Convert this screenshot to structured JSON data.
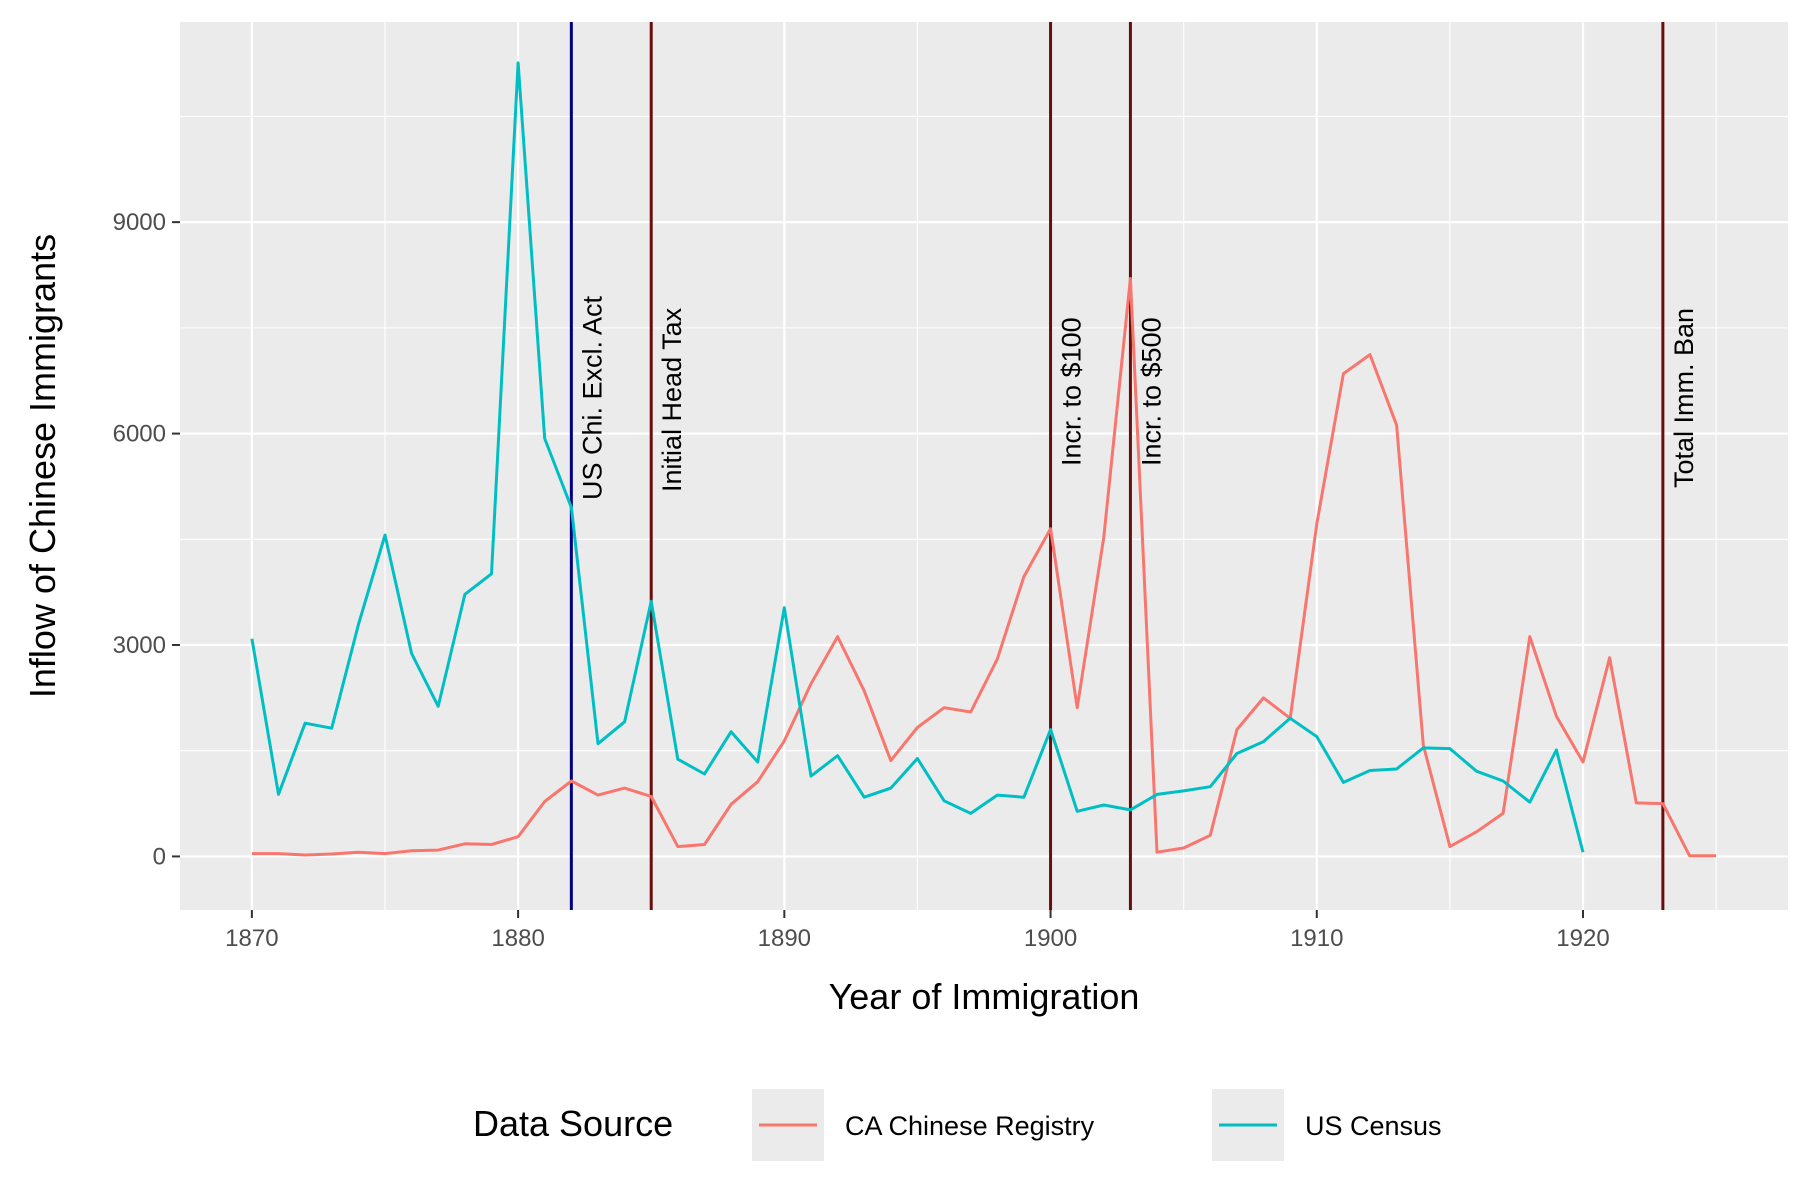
{
  "chart_data": {
    "type": "line",
    "xlabel": "Year of Immigration",
    "ylabel": "Inflow of Chinese Immigrants",
    "xlim": [
      1867.3,
      1927.7
    ],
    "ylim": [
      -760,
      11840
    ],
    "x_ticks": [
      1870,
      1880,
      1890,
      1900,
      1910,
      1920
    ],
    "y_ticks": [
      0,
      3000,
      6000,
      9000
    ],
    "x_tick_labels": [
      "1870",
      "1880",
      "1890",
      "1900",
      "1910",
      "1920"
    ],
    "y_tick_labels": [
      "0",
      "3000",
      "6000",
      "9000"
    ],
    "grid": true,
    "legend_position": "bottom",
    "legend_title": "Data Source",
    "series": [
      {
        "name": "CA Chinese Registry",
        "color": "#f8766d",
        "x": [
          1870,
          1871,
          1872,
          1873,
          1874,
          1875,
          1876,
          1877,
          1878,
          1879,
          1880,
          1881,
          1882,
          1883,
          1884,
          1885,
          1886,
          1887,
          1888,
          1889,
          1890,
          1891,
          1892,
          1893,
          1894,
          1895,
          1896,
          1897,
          1898,
          1899,
          1900,
          1901,
          1902,
          1903,
          1904,
          1905,
          1906,
          1907,
          1908,
          1909,
          1910,
          1911,
          1912,
          1913,
          1914,
          1915,
          1916,
          1917,
          1918,
          1919,
          1920,
          1921,
          1922,
          1923,
          1924,
          1925
        ],
        "y": [
          40,
          40,
          20,
          35,
          60,
          40,
          80,
          90,
          180,
          170,
          280,
          780,
          1070,
          870,
          970,
          850,
          140,
          170,
          740,
          1060,
          1640,
          2450,
          3120,
          2350,
          1360,
          1830,
          2110,
          2050,
          2800,
          3970,
          4650,
          2110,
          4530,
          8200,
          60,
          120,
          300,
          1800,
          2250,
          1960,
          4720,
          6850,
          7120,
          6120,
          1580,
          140,
          350,
          610,
          3120,
          1990,
          1340,
          2820,
          760,
          750,
          10,
          10
        ]
      },
      {
        "name": "US Census",
        "color": "#00bfc4",
        "x": [
          1870,
          1871,
          1872,
          1873,
          1874,
          1875,
          1876,
          1877,
          1878,
          1879,
          1880,
          1881,
          1882,
          1883,
          1884,
          1885,
          1886,
          1887,
          1888,
          1889,
          1890,
          1891,
          1892,
          1893,
          1894,
          1895,
          1896,
          1897,
          1898,
          1899,
          1900,
          1901,
          1902,
          1903,
          1904,
          1905,
          1906,
          1907,
          1908,
          1909,
          1910,
          1911,
          1912,
          1913,
          1914,
          1915,
          1916,
          1917,
          1918,
          1919,
          1920
        ],
        "y": [
          3090,
          880,
          1890,
          1820,
          3290,
          4560,
          2880,
          2130,
          3720,
          4010,
          11260,
          5930,
          4950,
          1600,
          1910,
          3620,
          1380,
          1170,
          1770,
          1340,
          3530,
          1140,
          1430,
          840,
          970,
          1390,
          790,
          610,
          870,
          840,
          1800,
          640,
          730,
          660,
          880,
          930,
          990,
          1460,
          1630,
          1960,
          1700,
          1050,
          1220,
          1240,
          1540,
          1530,
          1210,
          1070,
          770,
          1510,
          60
        ]
      }
    ],
    "events": [
      {
        "year": 1882,
        "label": "US Chi. Excl. Act",
        "color": "#000080"
      },
      {
        "year": 1885,
        "label": "Initial Head Tax",
        "color": "#6b0d0d"
      },
      {
        "year": 1900,
        "label": "Incr. to $100",
        "color": "#6b0d0d"
      },
      {
        "year": 1903,
        "label": "Incr. to $500",
        "color": "#6b0d0d"
      },
      {
        "year": 1923,
        "label": "Total Imm. Ban",
        "color": "#6b0d0d"
      }
    ]
  }
}
